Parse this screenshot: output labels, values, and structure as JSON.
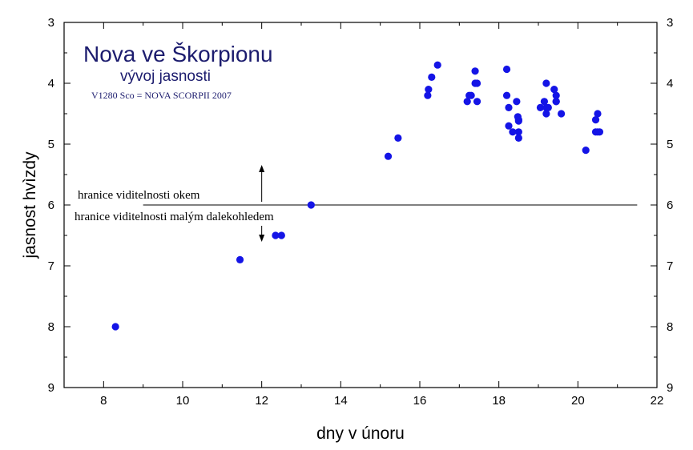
{
  "chart_data": {
    "type": "scatter",
    "title": "Nova ve Škorpionu",
    "subtitle": "vývoj jasnosti",
    "note": "V1280 Sco = NOVA SCORPII 2007",
    "xlabel": "dny v únoru",
    "ylabel": "jasnost hvìzdy",
    "xlim": [
      7,
      22
    ],
    "ylim": [
      3,
      9
    ],
    "y_inverted": true,
    "x_ticks": [
      8,
      10,
      12,
      14,
      16,
      18,
      20,
      22
    ],
    "y_ticks": [
      3,
      4,
      5,
      6,
      7,
      8,
      9
    ],
    "grid": false,
    "marker_color": "#1414e6",
    "series": [
      {
        "x": [
          8.3,
          11.45,
          12.35,
          12.5,
          13.25,
          15.2,
          15.45,
          16.2,
          16.22,
          16.3,
          16.45,
          17.2,
          17.25,
          17.3,
          17.4,
          17.4,
          17.45,
          17.45,
          18.2,
          18.2,
          18.25,
          18.25,
          18.35,
          18.45,
          18.48,
          18.5,
          18.5,
          18.5,
          18.5,
          19.05,
          19.15,
          19.2,
          19.2,
          19.2,
          19.25,
          19.4,
          19.45,
          19.45,
          19.45,
          19.58,
          20.2,
          20.45,
          20.45,
          20.5,
          20.5,
          20.55
        ],
        "y": [
          8.0,
          6.9,
          6.5,
          6.5,
          6.0,
          5.2,
          4.9,
          4.2,
          4.1,
          3.9,
          3.7,
          4.3,
          4.2,
          4.2,
          3.8,
          4.0,
          4.3,
          4.0,
          3.77,
          4.2,
          4.4,
          4.7,
          4.8,
          4.3,
          4.55,
          4.6,
          4.8,
          4.9,
          4.62,
          4.4,
          4.3,
          4.0,
          4.4,
          4.5,
          4.4,
          4.1,
          4.2,
          4.3,
          4.3,
          4.5,
          5.1,
          4.6,
          4.8,
          4.5,
          4.8,
          4.8
        ]
      }
    ],
    "reference_line": {
      "y": 6.0,
      "x_range": [
        9.0,
        21.5
      ],
      "label_above": "hranice viditelnosti okem",
      "label_below": "hranice viditelnosti malým dalekohledem"
    }
  }
}
